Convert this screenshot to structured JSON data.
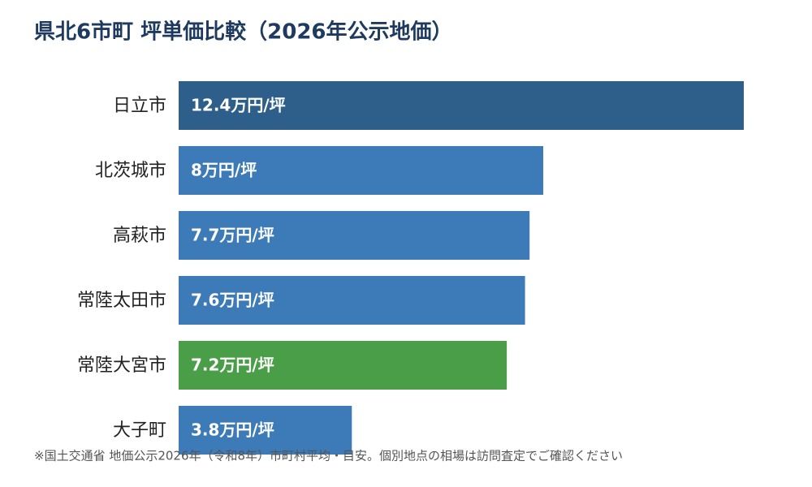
{
  "chart_data": {
    "type": "bar",
    "orientation": "horizontal",
    "title": "県北6市町 坪単価比較（2026年公示地価）",
    "categories": [
      "日立市",
      "北茨城市",
      "高萩市",
      "常陸太田市",
      "常陸大宮市",
      "大子町"
    ],
    "values": [
      12.4,
      8,
      7.7,
      7.6,
      7.2,
      3.8
    ],
    "value_labels": [
      "12.4万円/坪",
      "8万円/坪",
      "7.7万円/坪",
      "7.6万円/坪",
      "7.2万円/坪",
      "3.8万円/坪"
    ],
    "colors": [
      "#2e5f8a",
      "#3d7ab8",
      "#3d7ab8",
      "#3d7ab8",
      "#4a9e48",
      "#3d7ab8"
    ],
    "note": "※国土交通省 地価公示2026年（令和8年）市町村平均・目安。個別地点の相場は訪問査定でご確認ください"
  }
}
